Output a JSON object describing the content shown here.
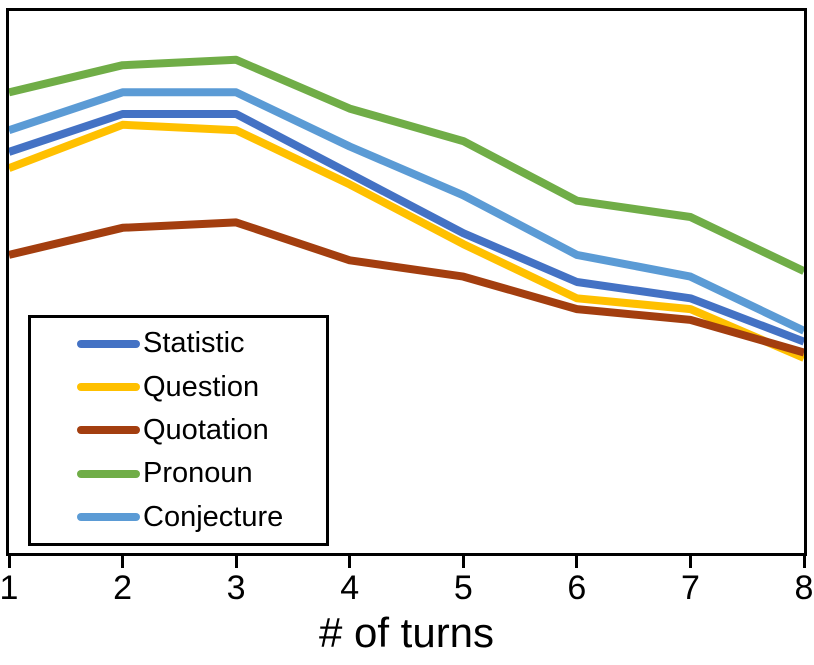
{
  "chart_data": {
    "type": "line",
    "x": [
      1,
      2,
      3,
      4,
      5,
      6,
      7,
      8
    ],
    "xlabel": "# of turns",
    "ylabel": "",
    "ylim": [
      0,
      100
    ],
    "y_axis_tick_labels_visible": false,
    "grid": false,
    "legend_position": "inside-bottom-left",
    "frame_color": "#000000",
    "background_color": "#ffffff",
    "series": [
      {
        "name": "Statistic",
        "color": "#4472C4",
        "values": [
          74,
          81,
          81,
          70,
          59,
          50,
          47,
          39
        ]
      },
      {
        "name": "Question",
        "color": "#FFC000",
        "values": [
          71,
          79,
          78,
          68,
          57,
          47,
          45,
          36
        ]
      },
      {
        "name": "Quotation",
        "color": "#A33E0F",
        "values": [
          55,
          60,
          61,
          54,
          51,
          45,
          43,
          37
        ]
      },
      {
        "name": "Pronoun",
        "color": "#70AD47",
        "values": [
          85,
          90,
          91,
          82,
          76,
          65,
          62,
          52
        ]
      },
      {
        "name": "Conjecture",
        "color": "#5B9BD5",
        "values": [
          78,
          85,
          85,
          75,
          66,
          55,
          51,
          41
        ]
      }
    ]
  }
}
